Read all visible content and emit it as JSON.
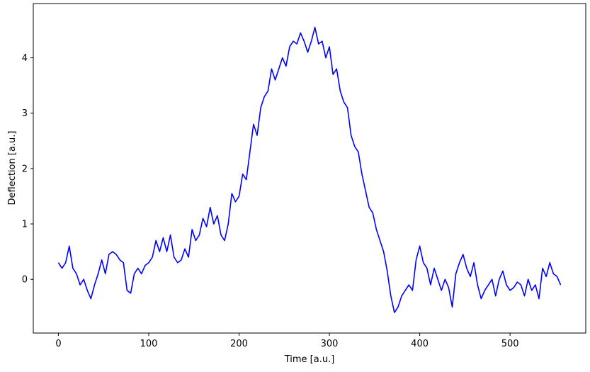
{
  "chart_data": {
    "type": "line",
    "xlabel": "Time [a.u.]",
    "ylabel": "Deflection [a.u.]",
    "xlim": [
      -27.8,
      583.8
    ],
    "ylim": [
      -0.97,
      4.98
    ],
    "xticks": [
      0,
      100,
      200,
      300,
      400,
      500
    ],
    "yticks": [
      0,
      1,
      2,
      3,
      4
    ],
    "grid": false,
    "series": [
      {
        "color": "#0000ff",
        "x": [
          0,
          4,
          8,
          12,
          16,
          20,
          24,
          28,
          32,
          36,
          40,
          44,
          48,
          52,
          56,
          60,
          64,
          68,
          72,
          76,
          80,
          84,
          88,
          92,
          96,
          100,
          104,
          108,
          112,
          116,
          120,
          124,
          128,
          132,
          136,
          140,
          144,
          148,
          152,
          156,
          160,
          164,
          168,
          172,
          176,
          180,
          184,
          188,
          192,
          196,
          200,
          204,
          208,
          212,
          216,
          220,
          224,
          228,
          232,
          236,
          240,
          244,
          248,
          252,
          256,
          260,
          264,
          268,
          272,
          276,
          280,
          284,
          288,
          292,
          296,
          300,
          304,
          308,
          312,
          316,
          320,
          324,
          328,
          332,
          336,
          340,
          344,
          348,
          352,
          356,
          360,
          364,
          368,
          372,
          376,
          380,
          384,
          388,
          392,
          396,
          400,
          404,
          408,
          412,
          416,
          420,
          424,
          428,
          432,
          436,
          440,
          444,
          448,
          452,
          456,
          460,
          464,
          468,
          472,
          476,
          480,
          484,
          488,
          492,
          496,
          500,
          504,
          508,
          512,
          516,
          520,
          524,
          528,
          532,
          536,
          540,
          544,
          548,
          552,
          556
        ],
        "values": [
          0.3,
          0.2,
          0.3,
          0.6,
          0.2,
          0.1,
          -0.1,
          0.0,
          -0.2,
          -0.35,
          -0.1,
          0.1,
          0.35,
          0.1,
          0.45,
          0.5,
          0.45,
          0.35,
          0.3,
          -0.2,
          -0.25,
          0.1,
          0.2,
          0.1,
          0.25,
          0.3,
          0.4,
          0.7,
          0.5,
          0.75,
          0.5,
          0.8,
          0.4,
          0.3,
          0.35,
          0.55,
          0.4,
          0.9,
          0.7,
          0.8,
          1.1,
          0.95,
          1.3,
          1.0,
          1.15,
          0.8,
          0.7,
          1.0,
          1.55,
          1.4,
          1.5,
          1.9,
          1.8,
          2.3,
          2.8,
          2.6,
          3.1,
          3.3,
          3.4,
          3.8,
          3.6,
          3.8,
          4.0,
          3.85,
          4.2,
          4.3,
          4.25,
          4.45,
          4.3,
          4.1,
          4.3,
          4.55,
          4.25,
          4.3,
          4.0,
          4.2,
          3.7,
          3.8,
          3.4,
          3.2,
          3.1,
          2.6,
          2.4,
          2.3,
          1.9,
          1.6,
          1.3,
          1.2,
          0.9,
          0.7,
          0.5,
          0.15,
          -0.3,
          -0.6,
          -0.5,
          -0.3,
          -0.2,
          -0.1,
          -0.2,
          0.35,
          0.6,
          0.3,
          0.2,
          -0.1,
          0.2,
          0.0,
          -0.2,
          0.0,
          -0.15,
          -0.5,
          0.1,
          0.3,
          0.45,
          0.2,
          0.05,
          0.3,
          -0.1,
          -0.35,
          -0.2,
          -0.1,
          0.0,
          -0.3,
          0.0,
          0.15,
          -0.1,
          -0.2,
          -0.15,
          -0.05,
          -0.1,
          -0.3,
          0.0,
          -0.2,
          -0.1,
          -0.35,
          0.2,
          0.05,
          0.3,
          0.1,
          0.05,
          -0.1
        ]
      }
    ]
  }
}
